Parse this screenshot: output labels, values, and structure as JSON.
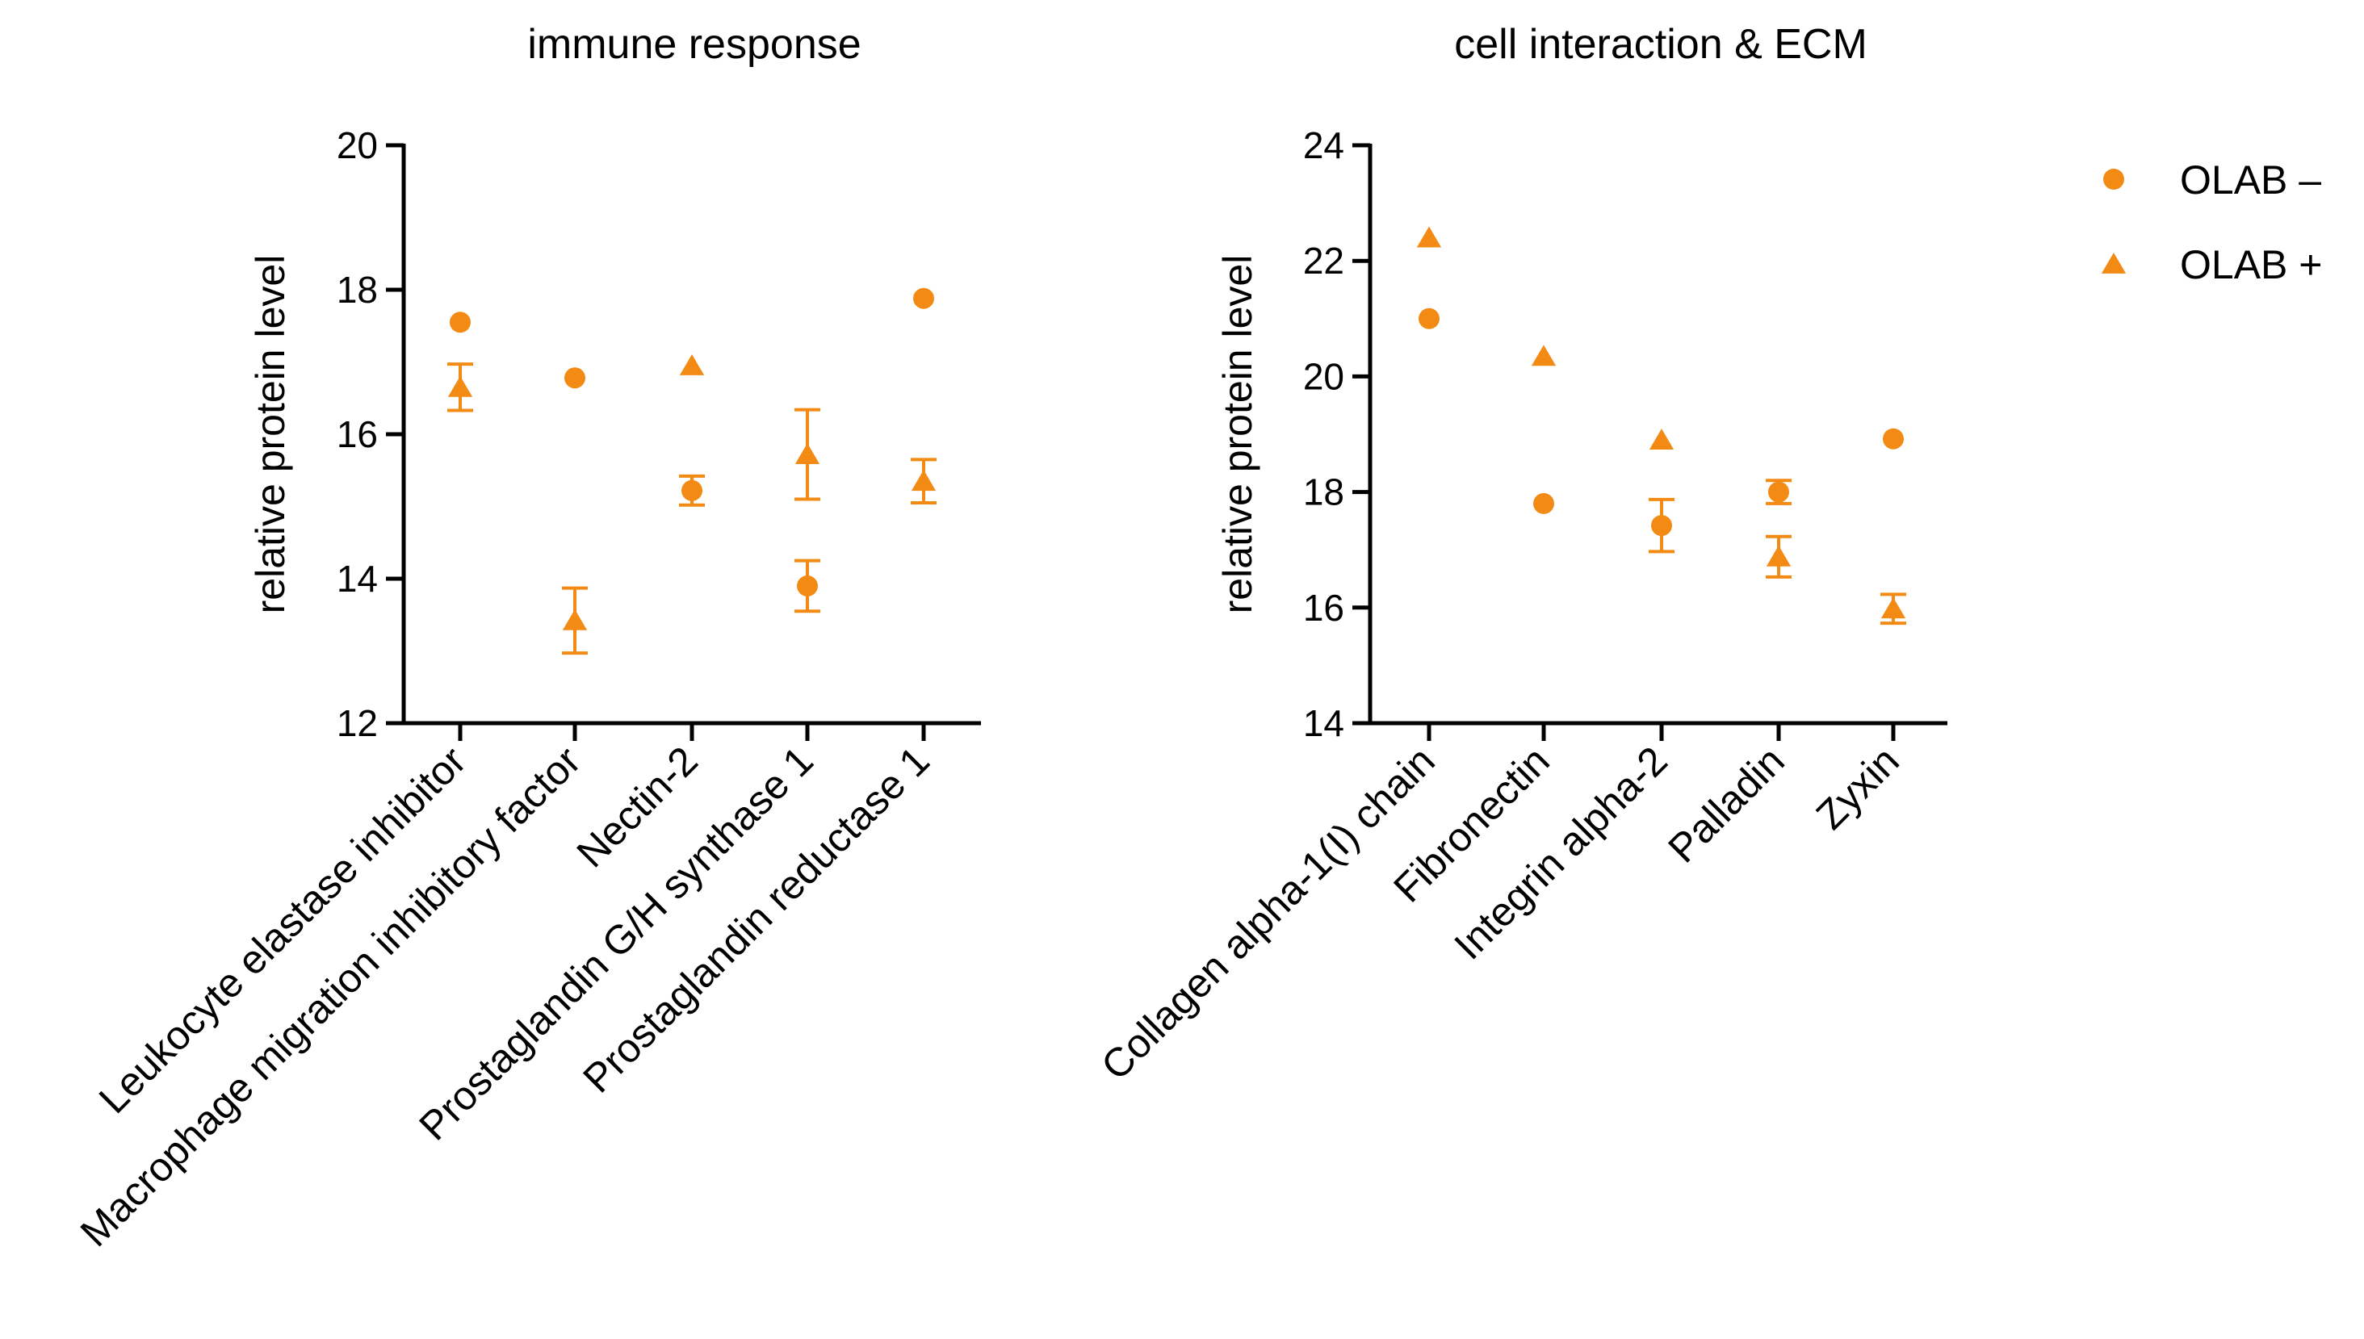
{
  "colors": {
    "marker": "#F28A13",
    "axis": "#000000"
  },
  "legend": [
    {
      "name": "OLAB –",
      "marker": "circle"
    },
    {
      "name": "OLAB +",
      "marker": "triangle"
    }
  ],
  "chart_data": [
    {
      "type": "scatter",
      "title": "immune response",
      "ylabel": "relative protein level",
      "ylim": [
        12,
        20
      ],
      "yticks": [
        12,
        14,
        16,
        18,
        20
      ],
      "categories": [
        "Leukocyte elastase inhibitor",
        "Macrophage migration inhibitory factor",
        "Nectin-2",
        "Prostaglandin G/H synthase 1",
        "Prostaglandin reductase 1"
      ],
      "series": [
        {
          "name": "OLAB –",
          "marker": "circle",
          "values": [
            17.55,
            16.78,
            15.22,
            13.9,
            17.88
          ],
          "errors": [
            0,
            0,
            0.2,
            0.35,
            0
          ]
        },
        {
          "name": "OLAB +",
          "marker": "triangle",
          "values": [
            16.65,
            13.42,
            16.95,
            15.72,
            15.35
          ],
          "errors": [
            0.32,
            0.45,
            0,
            0.62,
            0.3
          ]
        }
      ]
    },
    {
      "type": "scatter",
      "title": "cell interaction & ECM",
      "ylabel": "relative protein level",
      "ylim": [
        14,
        24
      ],
      "yticks": [
        14,
        16,
        18,
        20,
        22,
        24
      ],
      "categories": [
        "Collagen alpha-1(I) chain",
        "Fibronectin",
        "Integrin alpha-2",
        "Palladin",
        "Zyxin"
      ],
      "series": [
        {
          "name": "OLAB –",
          "marker": "circle",
          "values": [
            21.0,
            17.8,
            17.42,
            18.0,
            18.92
          ],
          "errors": [
            0,
            0,
            0.45,
            0.2,
            0
          ]
        },
        {
          "name": "OLAB +",
          "marker": "triangle",
          "values": [
            22.4,
            20.35,
            18.9,
            16.88,
            15.98
          ],
          "errors": [
            0,
            0,
            0,
            0.35,
            0.25
          ]
        }
      ]
    }
  ]
}
